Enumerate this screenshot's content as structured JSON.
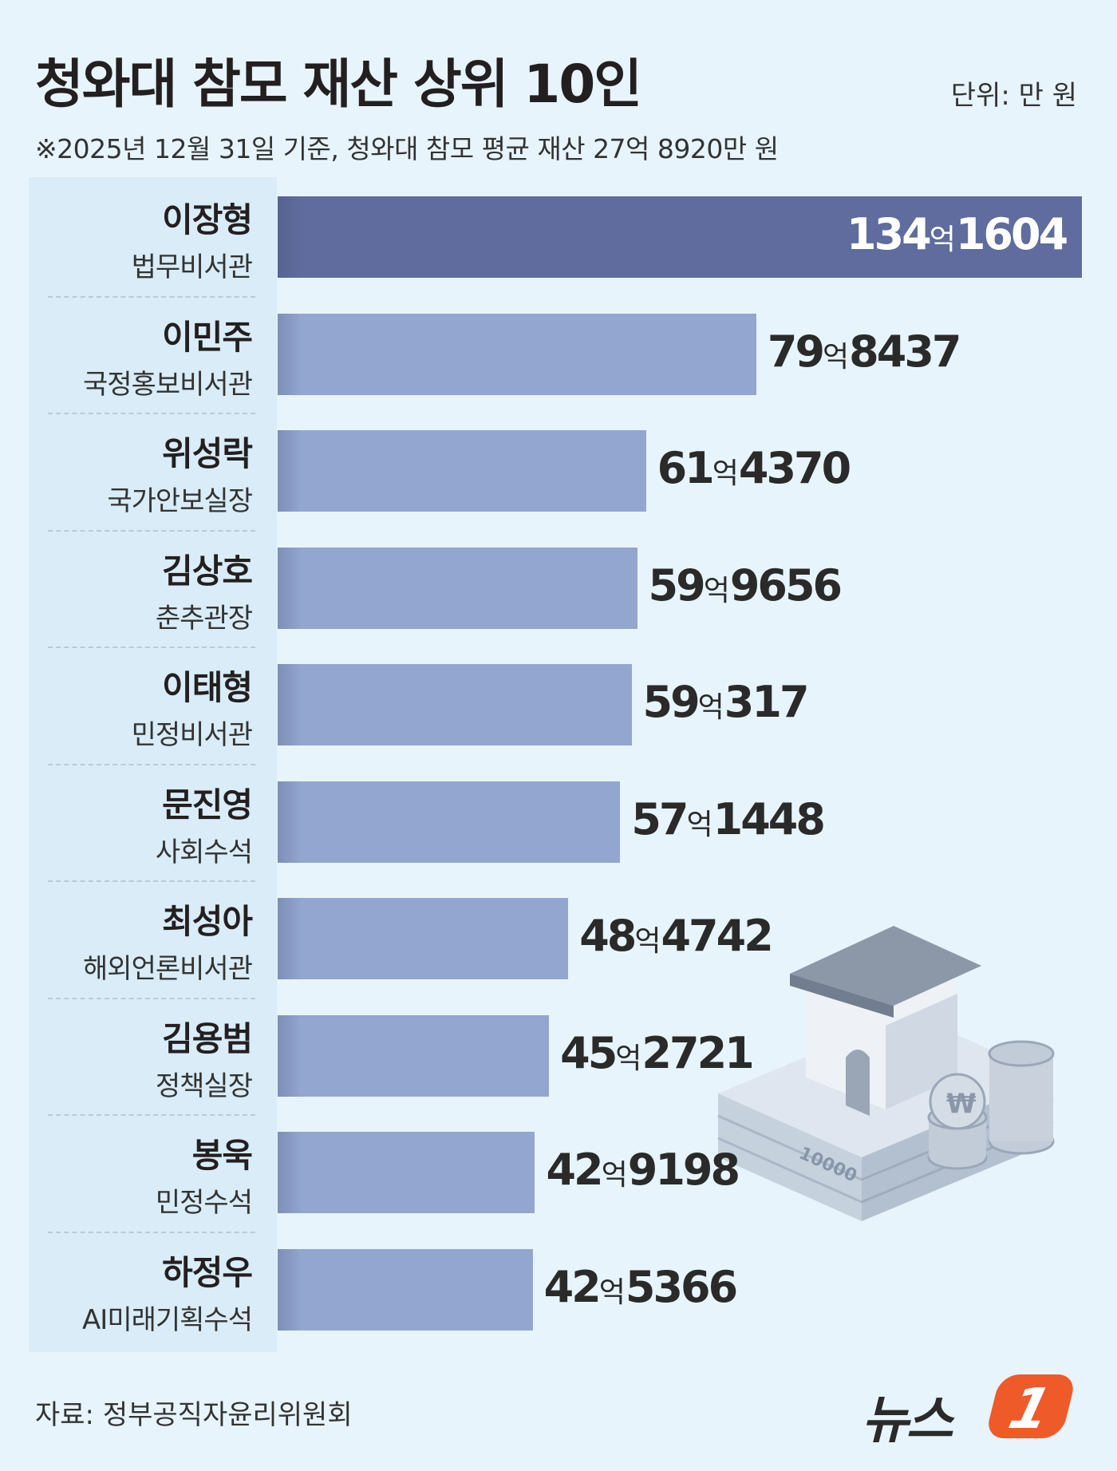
{
  "header": {
    "title": "청와대 참모 재산 상위 10인",
    "unit": "단위: 만 원",
    "subtitle": "※2025년 12월 31일 기준, 청와대 참모 평균 재산 27억 8920만 원"
  },
  "chart_data": {
    "type": "bar",
    "orientation": "horizontal",
    "title": "청와대 참모 재산 상위 10인",
    "unit": "만 원",
    "categories": [
      "이장형",
      "이민주",
      "위성락",
      "김상호",
      "이태형",
      "문진영",
      "최성아",
      "김용범",
      "봉욱",
      "하정우"
    ],
    "positions": [
      "법무비서관",
      "국정홍보비서관",
      "국가안보실장",
      "춘추관장",
      "민정비서관",
      "사회수석",
      "해외언론비서관",
      "정책실장",
      "민정수석",
      "AI미래기획수석"
    ],
    "values": [
      1341604,
      798437,
      614370,
      599656,
      590317,
      571448,
      484742,
      452721,
      429198,
      425366
    ],
    "labels_eok": [
      "134",
      "79",
      "61",
      "59",
      "59",
      "57",
      "48",
      "45",
      "42",
      "42"
    ],
    "labels_man": [
      "1604",
      "8437",
      "4370",
      "9656",
      "317",
      "1448",
      "4742",
      "2721",
      "9198",
      "5366"
    ],
    "eok_unit": "억",
    "highlight_index": 0,
    "colors": {
      "top": "#5f6c9d",
      "rest": "#93a6cf",
      "panel": "#d9ecf8",
      "background": "#e8f4fc"
    }
  },
  "footer": {
    "source": "자료: 정부공직자윤리위원회",
    "logo_text": "뉴스",
    "logo_badge": "1"
  },
  "illustration": {
    "icon": "house-money-coins-icon",
    "banknote_text": "10000"
  }
}
